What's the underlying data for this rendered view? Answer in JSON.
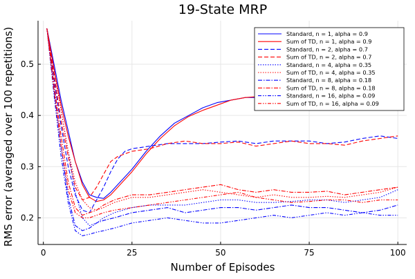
{
  "chart_data": {
    "type": "line",
    "title": "19-State MRP",
    "xlabel": "Number of Episodes",
    "ylabel": "RMS error (averaged over 100 repetitions)",
    "xlim": [
      -1.5,
      102.5
    ],
    "ylim": [
      0.148,
      0.585
    ],
    "xticks": [
      0,
      25,
      50,
      75,
      100
    ],
    "yticks": [
      0.2,
      0.3,
      0.4,
      0.5
    ],
    "xtick_labels": [
      "0",
      "25",
      "50",
      "75",
      "100"
    ],
    "ytick_labels": [
      "0.2",
      "0.3",
      "0.4",
      "0.5"
    ],
    "grid": true,
    "legend_position": "top-right",
    "series": [
      {
        "name": "Standard, n =  1, alpha = 0.9",
        "color": "#0000ff",
        "dash": "solid",
        "points": [
          [
            1,
            0.57
          ],
          [
            3,
            0.5
          ],
          [
            5,
            0.43
          ],
          [
            7,
            0.37
          ],
          [
            9,
            0.31
          ],
          [
            11,
            0.27
          ],
          [
            13,
            0.245
          ],
          [
            15,
            0.24
          ],
          [
            17,
            0.238
          ],
          [
            19,
            0.25
          ],
          [
            21,
            0.265
          ],
          [
            25,
            0.295
          ],
          [
            29,
            0.33
          ],
          [
            33,
            0.36
          ],
          [
            37,
            0.385
          ],
          [
            41,
            0.4
          ],
          [
            45,
            0.415
          ],
          [
            49,
            0.425
          ],
          [
            53,
            0.43
          ],
          [
            57,
            0.435
          ],
          [
            61,
            0.435
          ],
          [
            65,
            0.435
          ],
          [
            70,
            0.435
          ],
          [
            75,
            0.438
          ],
          [
            80,
            0.44
          ],
          [
            85,
            0.438
          ],
          [
            90,
            0.44
          ],
          [
            95,
            0.44
          ],
          [
            100,
            0.44
          ]
        ]
      },
      {
        "name": "Sum of TD, n = 1, alpha = 0.9",
        "color": "#ff0000",
        "dash": "solid",
        "points": [
          [
            1,
            0.57
          ],
          [
            3,
            0.49
          ],
          [
            5,
            0.42
          ],
          [
            7,
            0.36
          ],
          [
            9,
            0.31
          ],
          [
            11,
            0.265
          ],
          [
            13,
            0.24
          ],
          [
            15,
            0.232
          ],
          [
            17,
            0.235
          ],
          [
            19,
            0.245
          ],
          [
            21,
            0.26
          ],
          [
            25,
            0.29
          ],
          [
            29,
            0.325
          ],
          [
            33,
            0.355
          ],
          [
            37,
            0.38
          ],
          [
            41,
            0.398
          ],
          [
            45,
            0.41
          ],
          [
            49,
            0.42
          ],
          [
            53,
            0.43
          ],
          [
            57,
            0.435
          ],
          [
            61,
            0.437
          ],
          [
            65,
            0.438
          ],
          [
            70,
            0.44
          ],
          [
            75,
            0.44
          ],
          [
            80,
            0.44
          ],
          [
            85,
            0.44
          ],
          [
            90,
            0.44
          ],
          [
            95,
            0.44
          ],
          [
            100,
            0.44
          ]
        ]
      },
      {
        "name": "Standard, n =  2, alpha = 0.7",
        "color": "#0000ff",
        "dash": "6,3",
        "points": [
          [
            1,
            0.57
          ],
          [
            3,
            0.47
          ],
          [
            5,
            0.38
          ],
          [
            7,
            0.3
          ],
          [
            9,
            0.245
          ],
          [
            11,
            0.215
          ],
          [
            13,
            0.21
          ],
          [
            15,
            0.235
          ],
          [
            17,
            0.26
          ],
          [
            19,
            0.29
          ],
          [
            21,
            0.315
          ],
          [
            23,
            0.33
          ],
          [
            25,
            0.335
          ],
          [
            30,
            0.34
          ],
          [
            35,
            0.345
          ],
          [
            40,
            0.345
          ],
          [
            45,
            0.345
          ],
          [
            50,
            0.348
          ],
          [
            55,
            0.35
          ],
          [
            60,
            0.345
          ],
          [
            65,
            0.35
          ],
          [
            70,
            0.35
          ],
          [
            75,
            0.35
          ],
          [
            80,
            0.345
          ],
          [
            85,
            0.348
          ],
          [
            90,
            0.355
          ],
          [
            95,
            0.36
          ],
          [
            100,
            0.355
          ]
        ]
      },
      {
        "name": "Sum of TD, n = 2, alpha = 0.7",
        "color": "#ff0000",
        "dash": "6,3",
        "points": [
          [
            1,
            0.57
          ],
          [
            3,
            0.48
          ],
          [
            5,
            0.39
          ],
          [
            7,
            0.32
          ],
          [
            9,
            0.26
          ],
          [
            11,
            0.235
          ],
          [
            13,
            0.24
          ],
          [
            15,
            0.26
          ],
          [
            17,
            0.285
          ],
          [
            19,
            0.31
          ],
          [
            21,
            0.32
          ],
          [
            23,
            0.325
          ],
          [
            25,
            0.33
          ],
          [
            30,
            0.335
          ],
          [
            35,
            0.345
          ],
          [
            40,
            0.35
          ],
          [
            45,
            0.345
          ],
          [
            50,
            0.345
          ],
          [
            55,
            0.348
          ],
          [
            60,
            0.34
          ],
          [
            65,
            0.345
          ],
          [
            70,
            0.35
          ],
          [
            75,
            0.345
          ],
          [
            80,
            0.345
          ],
          [
            85,
            0.342
          ],
          [
            90,
            0.35
          ],
          [
            95,
            0.355
          ],
          [
            100,
            0.36
          ]
        ]
      },
      {
        "name": "Standard, n =  4, alpha = 0.35",
        "color": "#0000ff",
        "dash": "1.5,2",
        "points": [
          [
            1,
            0.57
          ],
          [
            3,
            0.49
          ],
          [
            5,
            0.41
          ],
          [
            7,
            0.33
          ],
          [
            9,
            0.25
          ],
          [
            11,
            0.2
          ],
          [
            13,
            0.185
          ],
          [
            15,
            0.19
          ],
          [
            17,
            0.2
          ],
          [
            20,
            0.21
          ],
          [
            25,
            0.22
          ],
          [
            30,
            0.225
          ],
          [
            35,
            0.225
          ],
          [
            40,
            0.225
          ],
          [
            45,
            0.23
          ],
          [
            50,
            0.235
          ],
          [
            55,
            0.235
          ],
          [
            60,
            0.23
          ],
          [
            65,
            0.23
          ],
          [
            70,
            0.232
          ],
          [
            75,
            0.235
          ],
          [
            80,
            0.235
          ],
          [
            85,
            0.23
          ],
          [
            90,
            0.235
          ],
          [
            95,
            0.24
          ],
          [
            100,
            0.255
          ]
        ]
      },
      {
        "name": "Sum of TD, n = 4, alpha = 0.35",
        "color": "#ff0000",
        "dash": "1.5,2",
        "points": [
          [
            1,
            0.57
          ],
          [
            3,
            0.49
          ],
          [
            5,
            0.41
          ],
          [
            7,
            0.33
          ],
          [
            9,
            0.27
          ],
          [
            11,
            0.235
          ],
          [
            13,
            0.22
          ],
          [
            15,
            0.215
          ],
          [
            17,
            0.22
          ],
          [
            20,
            0.23
          ],
          [
            25,
            0.24
          ],
          [
            30,
            0.24
          ],
          [
            35,
            0.245
          ],
          [
            40,
            0.25
          ],
          [
            45,
            0.255
          ],
          [
            50,
            0.25
          ],
          [
            55,
            0.245
          ],
          [
            60,
            0.24
          ],
          [
            65,
            0.245
          ],
          [
            70,
            0.24
          ],
          [
            75,
            0.24
          ],
          [
            80,
            0.242
          ],
          [
            85,
            0.24
          ],
          [
            90,
            0.245
          ],
          [
            95,
            0.25
          ],
          [
            100,
            0.26
          ]
        ]
      },
      {
        "name": "Standard, n =  8, alpha = 0.18",
        "color": "#0000ff",
        "dash": "6,2,1.5,2",
        "points": [
          [
            1,
            0.57
          ],
          [
            3,
            0.45
          ],
          [
            5,
            0.34
          ],
          [
            7,
            0.24
          ],
          [
            9,
            0.185
          ],
          [
            11,
            0.175
          ],
          [
            13,
            0.18
          ],
          [
            15,
            0.19
          ],
          [
            17,
            0.195
          ],
          [
            20,
            0.2
          ],
          [
            25,
            0.21
          ],
          [
            30,
            0.215
          ],
          [
            35,
            0.22
          ],
          [
            40,
            0.21
          ],
          [
            45,
            0.215
          ],
          [
            50,
            0.22
          ],
          [
            55,
            0.22
          ],
          [
            60,
            0.215
          ],
          [
            65,
            0.22
          ],
          [
            70,
            0.225
          ],
          [
            75,
            0.22
          ],
          [
            80,
            0.22
          ],
          [
            85,
            0.215
          ],
          [
            90,
            0.21
          ],
          [
            95,
            0.215
          ],
          [
            100,
            0.225
          ]
        ]
      },
      {
        "name": "Sum of TD, n = 8, alpha = 0.18",
        "color": "#ff0000",
        "dash": "6,2,1.5,2",
        "points": [
          [
            1,
            0.57
          ],
          [
            3,
            0.46
          ],
          [
            5,
            0.36
          ],
          [
            7,
            0.27
          ],
          [
            9,
            0.22
          ],
          [
            11,
            0.205
          ],
          [
            13,
            0.21
          ],
          [
            15,
            0.215
          ],
          [
            17,
            0.225
          ],
          [
            20,
            0.235
          ],
          [
            25,
            0.245
          ],
          [
            30,
            0.245
          ],
          [
            35,
            0.25
          ],
          [
            40,
            0.255
          ],
          [
            45,
            0.26
          ],
          [
            50,
            0.265
          ],
          [
            55,
            0.255
          ],
          [
            60,
            0.25
          ],
          [
            65,
            0.255
          ],
          [
            70,
            0.25
          ],
          [
            75,
            0.25
          ],
          [
            80,
            0.252
          ],
          [
            85,
            0.245
          ],
          [
            90,
            0.25
          ],
          [
            95,
            0.255
          ],
          [
            100,
            0.26
          ]
        ]
      },
      {
        "name": "Standard, n =  16, alpha = 0.09",
        "color": "#0000ff",
        "dash": "5,2,1.5,2,1.5,2",
        "points": [
          [
            1,
            0.57
          ],
          [
            3,
            0.44
          ],
          [
            5,
            0.32
          ],
          [
            7,
            0.23
          ],
          [
            9,
            0.175
          ],
          [
            11,
            0.165
          ],
          [
            13,
            0.168
          ],
          [
            15,
            0.172
          ],
          [
            17,
            0.175
          ],
          [
            20,
            0.18
          ],
          [
            25,
            0.19
          ],
          [
            30,
            0.195
          ],
          [
            35,
            0.2
          ],
          [
            40,
            0.195
          ],
          [
            45,
            0.19
          ],
          [
            50,
            0.19
          ],
          [
            55,
            0.195
          ],
          [
            60,
            0.2
          ],
          [
            65,
            0.205
          ],
          [
            70,
            0.2
          ],
          [
            75,
            0.205
          ],
          [
            80,
            0.21
          ],
          [
            85,
            0.205
          ],
          [
            90,
            0.21
          ],
          [
            95,
            0.205
          ],
          [
            100,
            0.205
          ]
        ]
      },
      {
        "name": "Sum of TD, n = 16, alpha = 0.09",
        "color": "#ff0000",
        "dash": "5,2,1.5,2,1.5,2",
        "points": [
          [
            1,
            0.57
          ],
          [
            3,
            0.45
          ],
          [
            5,
            0.34
          ],
          [
            7,
            0.255
          ],
          [
            9,
            0.21
          ],
          [
            11,
            0.2
          ],
          [
            13,
            0.2
          ],
          [
            15,
            0.205
          ],
          [
            17,
            0.21
          ],
          [
            20,
            0.215
          ],
          [
            25,
            0.22
          ],
          [
            30,
            0.225
          ],
          [
            35,
            0.23
          ],
          [
            40,
            0.235
          ],
          [
            45,
            0.24
          ],
          [
            50,
            0.245
          ],
          [
            55,
            0.25
          ],
          [
            60,
            0.24
          ],
          [
            65,
            0.235
          ],
          [
            70,
            0.23
          ],
          [
            75,
            0.232
          ],
          [
            80,
            0.235
          ],
          [
            85,
            0.235
          ],
          [
            90,
            0.23
          ],
          [
            95,
            0.235
          ],
          [
            100,
            0.235
          ]
        ]
      }
    ]
  }
}
